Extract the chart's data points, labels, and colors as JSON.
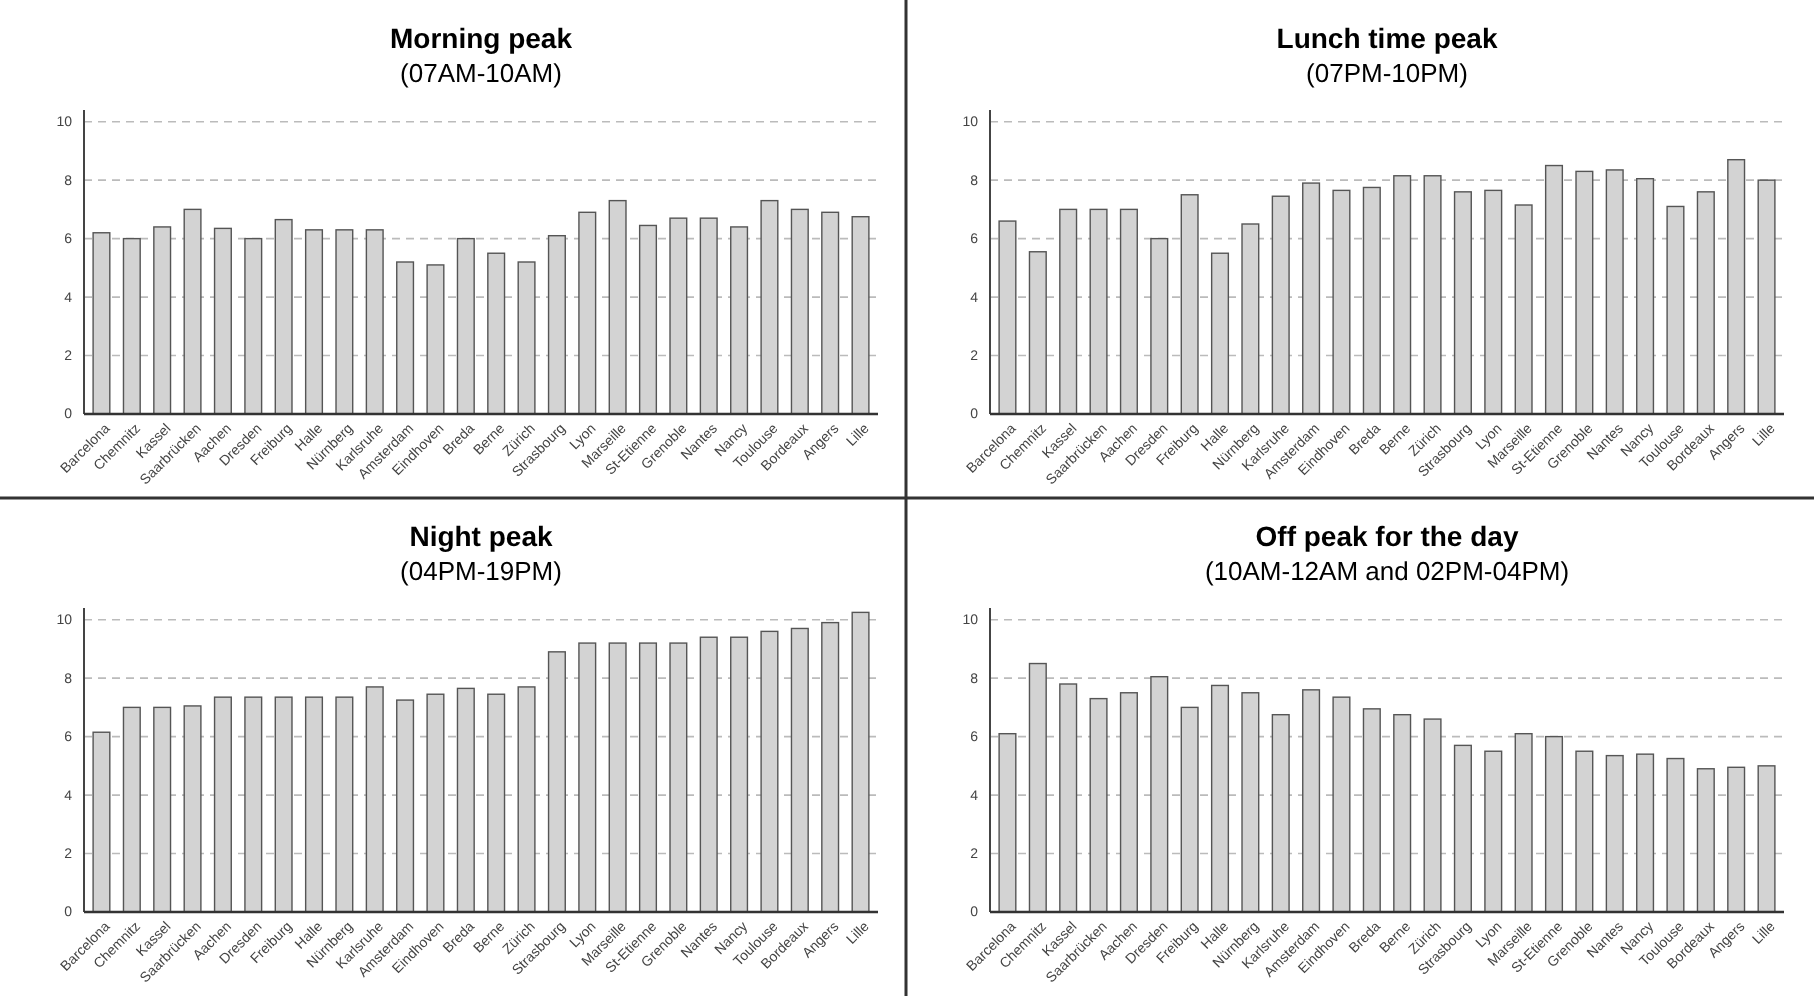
{
  "chart_data": [
    {
      "type": "bar",
      "title": "Morning peak",
      "subtitle": "(07AM-10AM)",
      "categories": [
        "Barcelona",
        "Chemnitz",
        "Kassel",
        "Saarbrücken",
        "Aachen",
        "Dresden",
        "Freiburg",
        "Halle",
        "Nürnberg",
        "Karlsruhe",
        "Amsterdam",
        "Eindhoven",
        "Breda",
        "Berne",
        "Zürich",
        "Strasbourg",
        "Lyon",
        "Marseille",
        "St-Etienne",
        "Grenoble",
        "Nantes",
        "Nancy",
        "Toulouse",
        "Bordeaux",
        "Angers",
        "Lille"
      ],
      "values": [
        6.2,
        6.0,
        6.4,
        7.0,
        6.35,
        6.0,
        6.65,
        6.3,
        6.3,
        6.3,
        5.2,
        5.1,
        6.0,
        5.5,
        5.2,
        6.1,
        6.9,
        7.3,
        6.45,
        6.7,
        6.7,
        6.4,
        7.3,
        7.0,
        6.9,
        6.75
      ],
      "color": "#d3d3d3",
      "ylim": [
        0,
        10.4
      ],
      "yticks": [
        0,
        2,
        4,
        6,
        8,
        10
      ],
      "grid": "y"
    },
    {
      "type": "bar",
      "title": "Lunch time peak",
      "subtitle": "(07PM-10PM)",
      "categories": [
        "Barcelona",
        "Chemnitz",
        "Kassel",
        "Saarbrücken",
        "Aachen",
        "Dresden",
        "Freiburg",
        "Halle",
        "Nürnberg",
        "Karlsruhe",
        "Amsterdam",
        "Eindhoven",
        "Breda",
        "Berne",
        "Zürich",
        "Strasbourg",
        "Lyon",
        "Marseille",
        "St-Etienne",
        "Grenoble",
        "Nantes",
        "Nancy",
        "Toulouse",
        "Bordeaux",
        "Angers",
        "Lille"
      ],
      "values": [
        6.6,
        5.55,
        7.0,
        7.0,
        7.0,
        6.0,
        7.5,
        5.5,
        6.5,
        7.45,
        7.9,
        7.65,
        7.75,
        8.15,
        8.15,
        7.6,
        7.65,
        7.15,
        8.5,
        8.3,
        8.35,
        8.05,
        7.1,
        7.6,
        8.7,
        8.0
      ],
      "color": "#d3d3d3",
      "ylim": [
        0,
        10.4
      ],
      "yticks": [
        0,
        2,
        4,
        6,
        8,
        10
      ],
      "grid": "y"
    },
    {
      "type": "bar",
      "title": "Night peak",
      "subtitle": "(04PM-19PM)",
      "categories": [
        "Barcelona",
        "Chemnitz",
        "Kassel",
        "Saarbrücken",
        "Aachen",
        "Dresden",
        "Freiburg",
        "Halle",
        "Nürnberg",
        "Karlsruhe",
        "Amsterdam",
        "Eindhoven",
        "Breda",
        "Berne",
        "Zürich",
        "Strasbourg",
        "Lyon",
        "Marseille",
        "St-Etienne",
        "Grenoble",
        "Nantes",
        "Nancy",
        "Toulouse",
        "Bordeaux",
        "Angers",
        "Lille"
      ],
      "values": [
        6.15,
        7.0,
        7.0,
        7.05,
        7.35,
        7.35,
        7.35,
        7.35,
        7.35,
        7.7,
        7.25,
        7.45,
        7.65,
        7.45,
        7.7,
        8.9,
        9.2,
        9.2,
        9.2,
        9.2,
        9.4,
        9.4,
        9.6,
        9.7,
        9.9,
        10.25
      ],
      "color": "#d3d3d3",
      "ylim": [
        0,
        10.4
      ],
      "yticks": [
        0,
        2,
        4,
        6,
        8,
        10
      ],
      "grid": "y"
    },
    {
      "type": "bar",
      "title": "Off peak for the day",
      "subtitle": "(10AM-12AM and 02PM-04PM)",
      "categories": [
        "Barcelona",
        "Chemnitz",
        "Kassel",
        "Saarbrücken",
        "Aachen",
        "Dresden",
        "Freiburg",
        "Halle",
        "Nürnberg",
        "Karlsruhe",
        "Amsterdam",
        "Eindhoven",
        "Breda",
        "Berne",
        "Zürich",
        "Strasbourg",
        "Lyon",
        "Marseille",
        "St-Etienne",
        "Grenoble",
        "Nantes",
        "Nancy",
        "Toulouse",
        "Bordeaux",
        "Angers",
        "Lille"
      ],
      "values": [
        6.1,
        8.5,
        7.8,
        7.3,
        7.5,
        8.05,
        7.0,
        7.75,
        7.5,
        6.75,
        7.6,
        7.35,
        6.95,
        6.75,
        6.6,
        5.7,
        5.5,
        6.1,
        6.0,
        5.5,
        5.35,
        5.4,
        5.25,
        4.9,
        4.95,
        5.0
      ],
      "color": "#d3d3d3",
      "ylim": [
        0,
        10.4
      ],
      "yticks": [
        0,
        2,
        4,
        6,
        8,
        10
      ],
      "grid": "y"
    }
  ]
}
